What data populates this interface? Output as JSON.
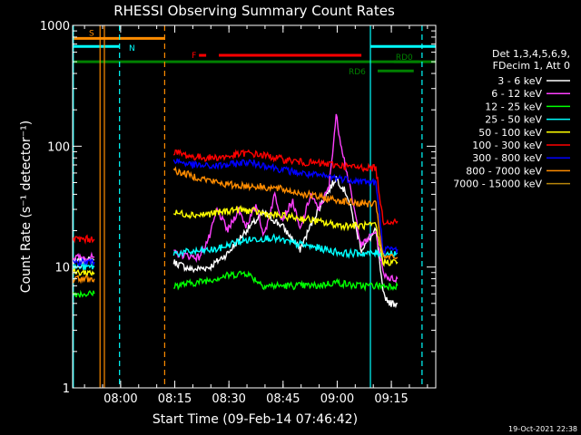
{
  "chart_data": {
    "type": "line",
    "title": "RHESSI Observing Summary Count Rates",
    "xlabel": "Start Time (09-Feb-14 07:46:42)",
    "ylabel": "Count Rate (s⁻¹ detector⁻¹)",
    "x_unit": "minutes",
    "xlim": [
      0,
      100.6
    ],
    "ylim": [
      1,
      1000
    ],
    "y_scale": "log",
    "x_ticks": [
      {
        "x": 13.3,
        "label": "08:00"
      },
      {
        "x": 28.3,
        "label": "08:15"
      },
      {
        "x": 43.3,
        "label": "08:30"
      },
      {
        "x": 58.3,
        "label": "08:45"
      },
      {
        "x": 73.3,
        "label": "09:00"
      },
      {
        "x": 88.3,
        "label": "09:15"
      }
    ],
    "y_ticks": [
      {
        "y": 1,
        "label": "1"
      },
      {
        "y": 10,
        "label": "10"
      },
      {
        "y": 100,
        "label": "100"
      },
      {
        "y": 1000,
        "label": "1000"
      }
    ],
    "legend": {
      "placement": "right",
      "header": [
        "Det 1,3,4,5,6,9,",
        "FDecim 1, Att 0"
      ]
    },
    "series": [
      {
        "name": "3 - 6 keV",
        "color": "#ffffff",
        "segments": [
          [
            [
              0,
              11
            ],
            [
              6,
              11.5
            ]
          ],
          [
            [
              28,
              11
            ],
            [
              33,
              9.5
            ],
            [
              38,
              10
            ],
            [
              43,
              13
            ],
            [
              48,
              20
            ],
            [
              53,
              28
            ],
            [
              58,
              22
            ],
            [
              63,
              14
            ],
            [
              68,
              30
            ],
            [
              73,
              55
            ],
            [
              76,
              40
            ],
            [
              80,
              14
            ],
            [
              84,
              20
            ],
            [
              86,
              6
            ],
            [
              88,
              5
            ],
            [
              90,
              5
            ]
          ]
        ]
      },
      {
        "name": "6 - 12 keV",
        "color": "#ff40ff",
        "segments": [
          [
            [
              0,
              12
            ],
            [
              6,
              12
            ]
          ],
          [
            [
              28,
              13
            ],
            [
              35,
              12
            ],
            [
              38,
              18
            ],
            [
              40,
              30
            ],
            [
              43,
              20
            ],
            [
              46,
              30
            ],
            [
              48,
              22
            ],
            [
              51,
              32
            ],
            [
              53,
              18
            ],
            [
              56,
              40
            ],
            [
              58,
              25
            ],
            [
              61,
              35
            ],
            [
              63,
              20
            ],
            [
              66,
              40
            ],
            [
              68,
              30
            ],
            [
              71,
              45
            ],
            [
              73,
              180
            ],
            [
              74,
              120
            ],
            [
              76,
              60
            ],
            [
              80,
              15
            ],
            [
              84,
              20
            ],
            [
              86,
              9
            ],
            [
              88,
              8
            ],
            [
              90,
              8
            ]
          ]
        ]
      },
      {
        "name": "12 - 25 keV",
        "color": "#00ff00",
        "segments": [
          [
            [
              0,
              6
            ],
            [
              6,
              6
            ]
          ],
          [
            [
              28,
              7
            ],
            [
              35,
              7.5
            ],
            [
              43,
              8.5
            ],
            [
              48,
              9
            ],
            [
              53,
              7
            ],
            [
              58,
              7
            ],
            [
              63,
              7
            ],
            [
              68,
              7
            ],
            [
              73,
              7.5
            ],
            [
              78,
              7
            ],
            [
              84,
              7
            ],
            [
              86,
              7
            ],
            [
              90,
              7
            ]
          ]
        ]
      },
      {
        "name": "25 - 50 keV",
        "color": "#00ffff",
        "segments": [
          [
            [
              0,
              10
            ],
            [
              6,
              10
            ]
          ],
          [
            [
              28,
              13
            ],
            [
              35,
              13.5
            ],
            [
              40,
              14
            ],
            [
              45,
              16
            ],
            [
              50,
              17
            ],
            [
              55,
              17.5
            ],
            [
              60,
              16
            ],
            [
              65,
              15
            ],
            [
              70,
              14
            ],
            [
              75,
              13
            ],
            [
              80,
              13
            ],
            [
              84,
              13
            ],
            [
              86,
              13
            ],
            [
              90,
              13
            ]
          ]
        ]
      },
      {
        "name": "50 - 100 keV",
        "color": "#ffff00",
        "segments": [
          [
            [
              0,
              9
            ],
            [
              6,
              9
            ]
          ],
          [
            [
              28,
              28
            ],
            [
              35,
              27
            ],
            [
              40,
              28
            ],
            [
              45,
              30
            ],
            [
              50,
              29
            ],
            [
              55,
              27
            ],
            [
              60,
              26
            ],
            [
              65,
              25
            ],
            [
              70,
              23
            ],
            [
              75,
              22
            ],
            [
              80,
              22
            ],
            [
              84,
              22
            ],
            [
              86,
              11
            ],
            [
              90,
              11
            ]
          ]
        ]
      },
      {
        "name": "100 - 300 keV",
        "color": "#ff0000",
        "segments": [
          [
            [
              0,
              17
            ],
            [
              6,
              17
            ]
          ],
          [
            [
              28,
              90
            ],
            [
              33,
              82
            ],
            [
              38,
              80
            ],
            [
              43,
              82
            ],
            [
              48,
              88
            ],
            [
              53,
              84
            ],
            [
              58,
              78
            ],
            [
              63,
              74
            ],
            [
              68,
              72
            ],
            [
              73,
              70
            ],
            [
              78,
              67
            ],
            [
              84,
              66
            ],
            [
              86,
              24
            ],
            [
              90,
              24
            ]
          ]
        ]
      },
      {
        "name": "300 - 800 keV",
        "color": "#0000ff",
        "segments": [
          [
            [
              0,
              11
            ],
            [
              6,
              11
            ]
          ],
          [
            [
              28,
              77
            ],
            [
              33,
              70
            ],
            [
              38,
              68
            ],
            [
              43,
              70
            ],
            [
              48,
              74
            ],
            [
              53,
              70
            ],
            [
              58,
              64
            ],
            [
              63,
              60
            ],
            [
              68,
              57
            ],
            [
              73,
              55
            ],
            [
              78,
              52
            ],
            [
              84,
              50
            ],
            [
              86,
              14
            ],
            [
              90,
              14
            ]
          ]
        ]
      },
      {
        "name": "800 - 7000 keV",
        "color": "#ff8c00",
        "segments": [
          [
            [
              0,
              8
            ],
            [
              6,
              8
            ]
          ],
          [
            [
              28,
              63
            ],
            [
              33,
              57
            ],
            [
              38,
              52
            ],
            [
              43,
              48
            ],
            [
              48,
              47
            ],
            [
              53,
              46
            ],
            [
              58,
              44
            ],
            [
              63,
              41
            ],
            [
              68,
              38
            ],
            [
              73,
              36
            ],
            [
              78,
              34
            ],
            [
              84,
              33
            ],
            [
              86,
              12
            ],
            [
              90,
              12
            ]
          ]
        ]
      },
      {
        "name": "7000 - 15000 keV",
        "color": "#b8860b",
        "segments": []
      }
    ],
    "flag_bars": [
      {
        "label": "S",
        "color": "#ff8c00",
        "level": 780,
        "start": 0,
        "end": 25.5
      },
      {
        "label": "N",
        "color": "#00ffff",
        "level": 670,
        "start": 0,
        "end": 13.0
      },
      {
        "label": "N",
        "color": "#00ffff",
        "level": 670,
        "start": 82.5,
        "end": 100.6
      },
      {
        "label": "F",
        "color": "#ff0000",
        "level": 565,
        "start": 35,
        "end": 37
      },
      {
        "label": "F",
        "color": "#ff0000",
        "level": 565,
        "start": 40.5,
        "end": 80
      },
      {
        "label": "",
        "color": "#008000",
        "level": 500,
        "start": 0,
        "end": 100.6
      },
      {
        "label": "RD6",
        "color": "#008000",
        "level": 420,
        "start": 84.5,
        "end": 94.5
      },
      {
        "label": "RD0",
        "color": "#008000",
        "level": 500,
        "start": 89,
        "end": 96
      }
    ],
    "vertical_lines": [
      {
        "x": 0.2,
        "color": "#00ffff",
        "style": "solid"
      },
      {
        "x": 13.0,
        "color": "#00ffff",
        "style": "dashed"
      },
      {
        "x": 82.5,
        "color": "#00ffff",
        "style": "solid"
      },
      {
        "x": 96.8,
        "color": "#00ffff",
        "style": "dashed"
      },
      {
        "x": 7.6,
        "color": "#ff8c00",
        "style": "solid"
      },
      {
        "x": 8.8,
        "color": "#ff8c00",
        "style": "solid"
      },
      {
        "x": 25.5,
        "color": "#ff8c00",
        "style": "dashed"
      }
    ],
    "footer": "19-Oct-2021 22:38"
  }
}
